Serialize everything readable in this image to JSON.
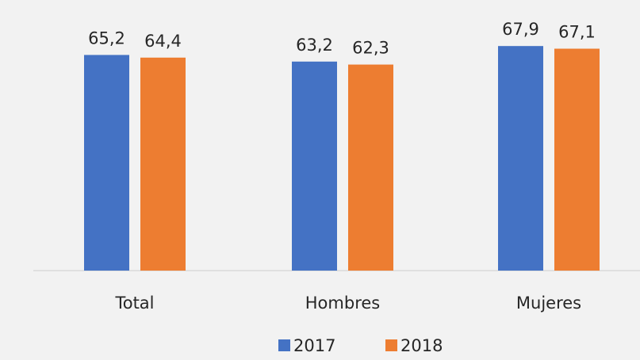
{
  "chart_data": {
    "type": "bar",
    "categories": [
      "Total",
      "Hombres",
      "Mujeres"
    ],
    "series": [
      {
        "name": "2017",
        "values": [
          65.2,
          63.2,
          67.9
        ],
        "labels": [
          "65,2",
          "63,2",
          "67,9"
        ],
        "color": "#4472c4"
      },
      {
        "name": "2018",
        "values": [
          64.4,
          62.3,
          67.1
        ],
        "labels": [
          "64,4",
          "62,3",
          "67,1"
        ],
        "color": "#ed7d31"
      }
    ],
    "title": "",
    "xlabel": "",
    "ylabel": "",
    "ylim": [
      0,
      80
    ],
    "grid": false,
    "legend": "bottom-center"
  }
}
